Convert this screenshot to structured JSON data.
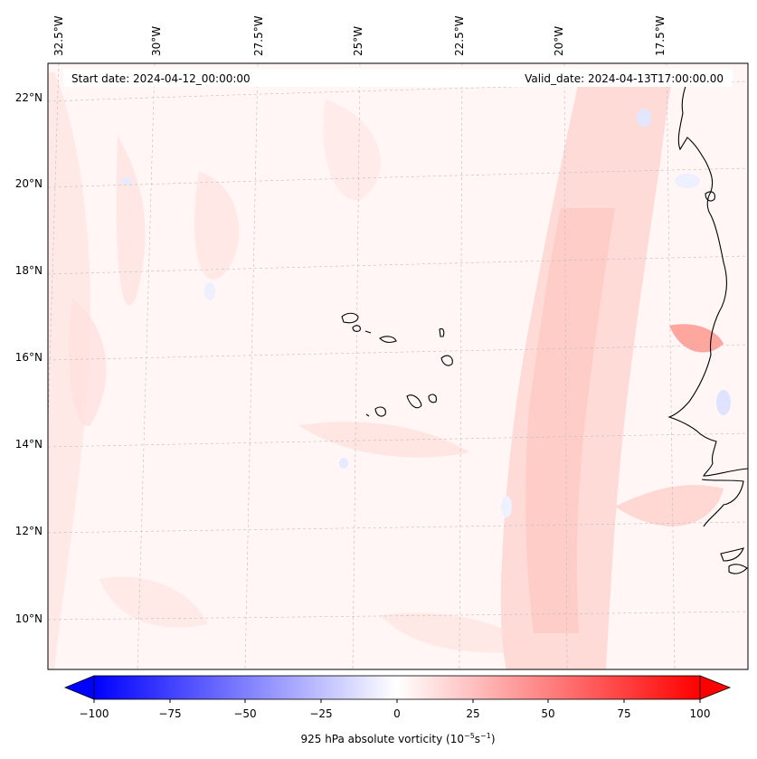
{
  "map": {
    "start_date": "Start date: 2024-04-12_00:00:00",
    "valid_date": "Valid_date: 2024-04-13T17:00:00.00",
    "lon_labels": [
      "32.5°W",
      "30°W",
      "27.5°W",
      "25°W",
      "22.5°W",
      "20°W",
      "17.5°W"
    ],
    "lat_labels": [
      "22°N",
      "20°N",
      "18°N",
      "16°N",
      "14°N",
      "12°N",
      "10°N"
    ],
    "lon_range": [
      -33,
      -15.5
    ],
    "lat_range": [
      8.8,
      22.8
    ]
  },
  "colorbar": {
    "min": -100,
    "max": 100,
    "ticks": [
      "−100",
      "−75",
      "−50",
      "−25",
      "0",
      "25",
      "50",
      "75",
      "100"
    ],
    "label_prefix": "925 hPa absolute vorticity (10",
    "label_exp1": "−5",
    "label_mid": "s",
    "label_exp2": "−1",
    "label_suffix": ")",
    "colors": {
      "negative": "#0000ff",
      "zero": "#ffffff",
      "positive": "#ff0000"
    }
  }
}
